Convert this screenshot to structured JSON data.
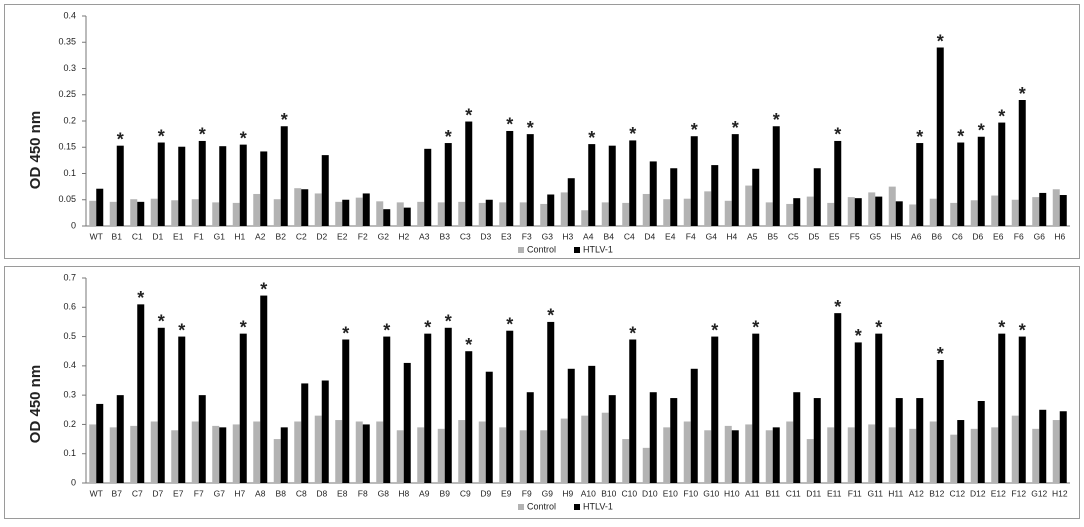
{
  "chart_data": [
    {
      "type": "bar",
      "y_label": "OD 450 nm",
      "categories": [
        "WT",
        "B1",
        "C1",
        "D1",
        "E1",
        "F1",
        "G1",
        "H1",
        "A2",
        "B2",
        "C2",
        "D2",
        "E2",
        "F2",
        "G2",
        "H2",
        "A3",
        "B3",
        "C3",
        "D3",
        "E3",
        "F3",
        "G3",
        "H3",
        "A4",
        "B4",
        "C4",
        "D4",
        "E4",
        "F4",
        "G4",
        "H4",
        "A5",
        "B5",
        "C5",
        "D5",
        "E5",
        "F5",
        "G5",
        "H5",
        "A6",
        "B6",
        "C6",
        "D6",
        "E6",
        "F6",
        "G6",
        "H6"
      ],
      "series": [
        {
          "name": "Control",
          "color": "#b3b3b3",
          "values": [
            0.048,
            0.046,
            0.051,
            0.052,
            0.049,
            0.051,
            0.045,
            0.044,
            0.061,
            0.051,
            0.072,
            0.062,
            0.046,
            0.054,
            0.047,
            0.045,
            0.046,
            0.045,
            0.046,
            0.044,
            0.045,
            0.045,
            0.042,
            0.064,
            0.03,
            0.045,
            0.044,
            0.061,
            0.051,
            0.052,
            0.066,
            0.048,
            0.077,
            0.045,
            0.042,
            0.056,
            0.044,
            0.055,
            0.064,
            0.075,
            0.041,
            0.052,
            0.044,
            0.049,
            0.058,
            0.05,
            0.055,
            0.07
          ]
        },
        {
          "name": "HTLV-1",
          "color": "#000000",
          "values": [
            0.071,
            0.153,
            0.046,
            0.159,
            0.151,
            0.162,
            0.152,
            0.155,
            0.142,
            0.19,
            0.07,
            0.135,
            0.05,
            0.062,
            0.032,
            0.035,
            0.147,
            0.158,
            0.199,
            0.05,
            0.181,
            0.175,
            0.06,
            0.091,
            0.156,
            0.153,
            0.163,
            0.123,
            0.11,
            0.171,
            0.116,
            0.175,
            0.109,
            0.19,
            0.053,
            0.11,
            0.162,
            0.053,
            0.056,
            0.047,
            0.158,
            0.34,
            0.159,
            0.17,
            0.197,
            0.24,
            0.063,
            0.059
          ]
        }
      ],
      "annotations": [
        null,
        "*",
        null,
        "*",
        null,
        "*",
        null,
        "*",
        null,
        "*",
        null,
        null,
        null,
        null,
        null,
        null,
        null,
        "*",
        "*",
        null,
        "*",
        "*",
        null,
        null,
        "*",
        null,
        "*",
        null,
        null,
        "*",
        null,
        "*",
        null,
        "*",
        null,
        null,
        "*",
        null,
        null,
        null,
        "*",
        "*",
        "*",
        "*",
        "*",
        "*",
        null,
        null
      ],
      "ylim": [
        0,
        0.4
      ],
      "yticks": [
        0,
        0.05,
        0.1,
        0.15,
        0.2,
        0.25,
        0.3,
        0.35,
        0.4
      ],
      "legend": "bottom"
    },
    {
      "type": "bar",
      "y_label": "OD 450 nm",
      "categories": [
        "WT",
        "B7",
        "C7",
        "D7",
        "E7",
        "F7",
        "G7",
        "H7",
        "A8",
        "B8",
        "C8",
        "D8",
        "E8",
        "F8",
        "G8",
        "H8",
        "A9",
        "B9",
        "C9",
        "D9",
        "E9",
        "F9",
        "G9",
        "H9",
        "A10",
        "B10",
        "C10",
        "D10",
        "E10",
        "F10",
        "G10",
        "H10",
        "A11",
        "B11",
        "C11",
        "D11",
        "E11",
        "F11",
        "G11",
        "H11",
        "A12",
        "B12",
        "C12",
        "D12",
        "E12",
        "F12",
        "G12",
        "H12"
      ],
      "series": [
        {
          "name": "Control",
          "color": "#b3b3b3",
          "values": [
            0.2,
            0.19,
            0.195,
            0.21,
            0.18,
            0.21,
            0.195,
            0.2,
            0.21,
            0.15,
            0.21,
            0.23,
            0.215,
            0.21,
            0.21,
            0.18,
            0.19,
            0.185,
            0.215,
            0.21,
            0.19,
            0.18,
            0.18,
            0.22,
            0.23,
            0.24,
            0.15,
            0.12,
            0.19,
            0.21,
            0.18,
            0.195,
            0.2,
            0.18,
            0.21,
            0.15,
            0.19,
            0.19,
            0.2,
            0.19,
            0.185,
            0.21,
            0.165,
            0.185,
            0.19,
            0.23,
            0.185,
            0.215
          ]
        },
        {
          "name": "HTLV-1",
          "color": "#000000",
          "values": [
            0.27,
            0.3,
            0.61,
            0.53,
            0.5,
            0.3,
            0.19,
            0.51,
            0.64,
            0.19,
            0.34,
            0.35,
            0.49,
            0.2,
            0.5,
            0.41,
            0.51,
            0.53,
            0.45,
            0.38,
            0.52,
            0.31,
            0.55,
            0.39,
            0.4,
            0.3,
            0.49,
            0.31,
            0.29,
            0.39,
            0.5,
            0.18,
            0.51,
            0.19,
            0.31,
            0.29,
            0.58,
            0.48,
            0.51,
            0.29,
            0.29,
            0.42,
            0.215,
            0.28,
            0.51,
            0.5,
            0.25,
            0.245
          ]
        }
      ],
      "annotations": [
        null,
        null,
        "*",
        "*",
        "*",
        null,
        null,
        "*",
        "*",
        null,
        null,
        null,
        "*",
        null,
        "*",
        null,
        "*",
        "*",
        "*",
        null,
        "*",
        null,
        "*",
        null,
        null,
        null,
        "*",
        null,
        null,
        null,
        "*",
        null,
        "*",
        null,
        null,
        null,
        "*",
        "*",
        "*",
        null,
        null,
        "*",
        null,
        null,
        "*",
        "*",
        null,
        null
      ],
      "ylim": [
        0,
        0.7
      ],
      "yticks": [
        0,
        0.1,
        0.2,
        0.3,
        0.4,
        0.5,
        0.6,
        0.7
      ],
      "legend": "bottom"
    }
  ]
}
